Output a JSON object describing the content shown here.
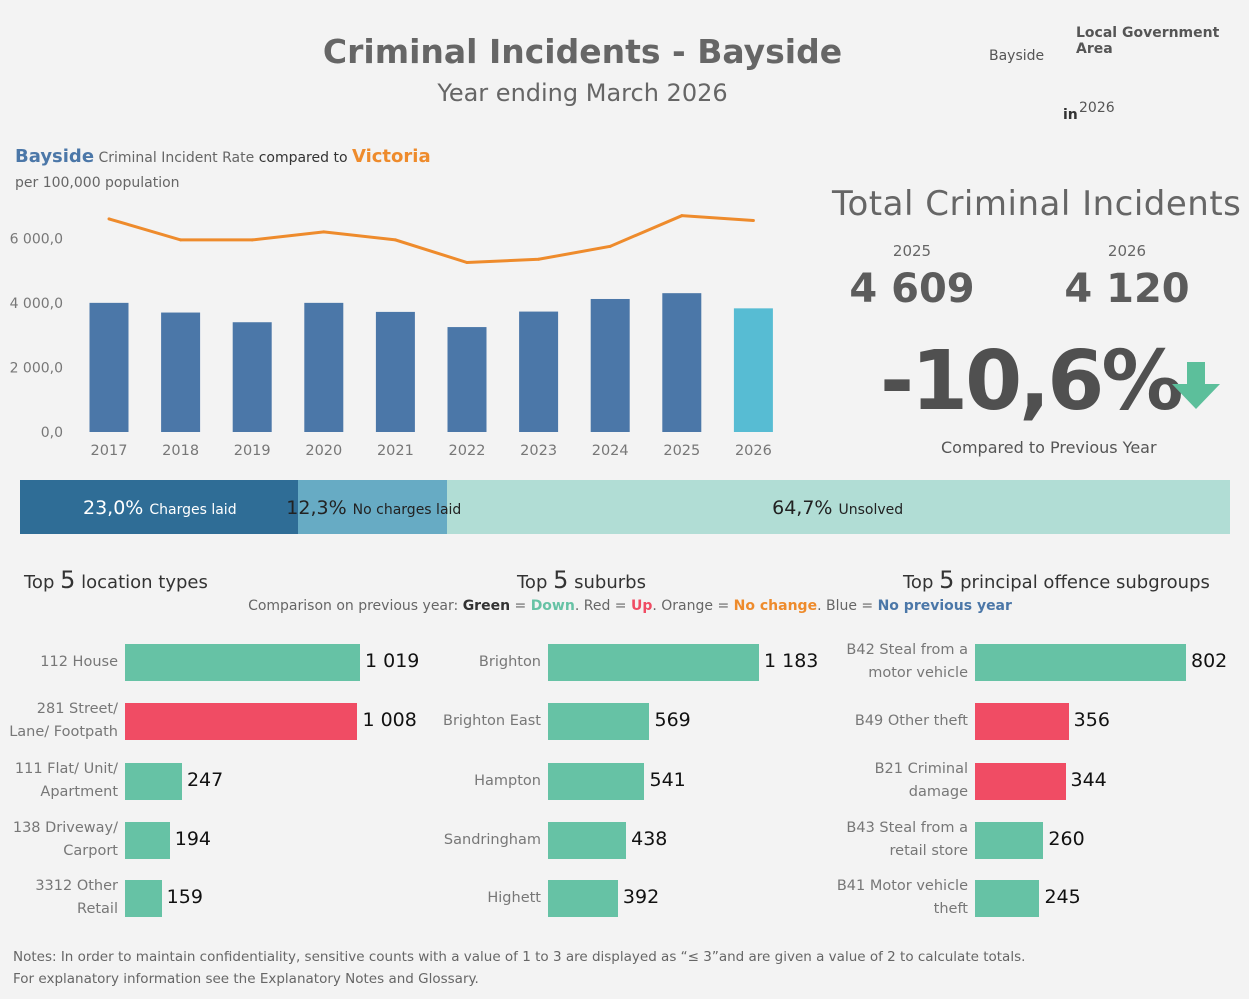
{
  "header": {
    "title": "Criminal Incidents - Bayside",
    "subtitle": "Year ending March 2026",
    "lga_label": "Local Government Area",
    "lga_value": "Bayside",
    "in_label": "in",
    "year_value": "2026"
  },
  "rate_section": {
    "location": "Bayside",
    "mid_text": "Criminal Incident Rate",
    "compared_text": "compared to",
    "comparison": "Victoria",
    "per_text": "per 100,000 population"
  },
  "total": {
    "title": "Total Criminal Incidents",
    "year1": "2025",
    "value1": "4 609",
    "year2": "2026",
    "value2": "4 120",
    "change": "-10,6%",
    "compared_text": "Compared to Previous Year",
    "arrow_icon": "down-arrow-icon",
    "arrow_color": "#5cbf9b"
  },
  "outcomes": [
    {
      "pct_text": "23,0%",
      "label": "Charges laid",
      "share": 0.23,
      "color": "#2f6d96",
      "text_color": "#ffffff"
    },
    {
      "pct_text": "12,3%",
      "label": "No charges laid",
      "share": 0.123,
      "color": "#67abc4",
      "text_color": "#222222"
    },
    {
      "pct_text": "64,7%",
      "label": "Unsolved",
      "share": 0.647,
      "color": "#b1ddd5",
      "text_color": "#222222"
    }
  ],
  "sections": {
    "top": "Top",
    "five": "5",
    "locations_title": "location types",
    "suburbs_title": "suburbs",
    "offences_title": "principal offence subgroups",
    "legend": {
      "prefix": "Comparison on previous year:",
      "green": "Green",
      "eq1": "=",
      "down": "Down",
      "red": "Red",
      "eq2": "=",
      "up": "Up",
      "orange": "Orange",
      "eq3": "=",
      "nochange": "No change",
      "blue": "Blue",
      "eq4": "=",
      "noprev": "No previous year"
    }
  },
  "colors": {
    "bar": "#4b77a8",
    "bar_current": "#57bcd3",
    "line": "#ee8b2c",
    "down": "#66c2a5",
    "up": "#f04c64",
    "nochange": "#ee8b2c",
    "noprev": "#4b77a8"
  },
  "chart_data": [
    {
      "type": "bar",
      "categories": [
        "2017",
        "2018",
        "2019",
        "2020",
        "2021",
        "2022",
        "2023",
        "2024",
        "2025",
        "2026"
      ],
      "series": [
        {
          "name": "Bayside",
          "values": [
            4000,
            3700,
            3400,
            4000,
            3720,
            3250,
            3730,
            4120,
            4300,
            3830
          ]
        },
        {
          "name": "Victoria",
          "values": [
            6600,
            5950,
            5950,
            6200,
            5950,
            5250,
            5350,
            5750,
            6700,
            6550
          ]
        }
      ],
      "yticks": [
        "6 000,0",
        "4 000,0",
        "2 000,0",
        "0,0"
      ],
      "ytick_values": [
        6000,
        4000,
        2000,
        0
      ],
      "ylim": [
        0,
        7000
      ]
    },
    {
      "type": "bar",
      "orientation": "horizontal",
      "categories": [
        "112 House",
        "281 Street/ Lane/ Footpath",
        "111 Flat/ Unit/ Apartment",
        "138 Driveway/ Carport",
        "3312 Other Retail"
      ],
      "labels": [
        [
          "112 House"
        ],
        [
          "281 Street/",
          "Lane/ Footpath"
        ],
        [
          "111 Flat/ Unit/",
          "Apartment"
        ],
        [
          "138 Driveway/",
          "Carport"
        ],
        [
          "3312 Other",
          "Retail"
        ]
      ],
      "values": [
        1019,
        1008,
        247,
        194,
        159
      ],
      "value_text": [
        "1 019",
        "1 008",
        "247",
        "194",
        "159"
      ],
      "status": [
        "down",
        "up",
        "down",
        "down",
        "down"
      ]
    },
    {
      "type": "bar",
      "orientation": "horizontal",
      "categories": [
        "Brighton",
        "Brighton East",
        "Hampton",
        "Sandringham",
        "Highett"
      ],
      "labels": [
        [
          "Brighton"
        ],
        [
          "Brighton East"
        ],
        [
          "Hampton"
        ],
        [
          "Sandringham"
        ],
        [
          "Highett"
        ]
      ],
      "values": [
        1183,
        569,
        541,
        438,
        392
      ],
      "value_text": [
        "1 183",
        "569",
        "541",
        "438",
        "392"
      ],
      "status": [
        "down",
        "down",
        "down",
        "down",
        "down"
      ]
    },
    {
      "type": "bar",
      "orientation": "horizontal",
      "categories": [
        "B42 Steal from a motor vehicle",
        "B49 Other theft",
        "B21 Criminal damage",
        "B43 Steal from a retail store",
        "B41 Motor vehicle theft"
      ],
      "labels": [
        [
          "B42 Steal from a",
          "motor vehicle"
        ],
        [
          "B49 Other theft"
        ],
        [
          "B21 Criminal",
          "damage"
        ],
        [
          "B43 Steal from a",
          "retail store"
        ],
        [
          "B41 Motor vehicle",
          "theft"
        ]
      ],
      "values": [
        802,
        356,
        344,
        260,
        245
      ],
      "value_text": [
        "802",
        "356",
        "344",
        "260",
        "245"
      ],
      "status": [
        "down",
        "up",
        "up",
        "down",
        "down"
      ]
    }
  ],
  "notes": {
    "line1": "Notes:  In order to maintain confidentiality, sensitive counts with a value of 1 to 3  are displayed as “≤ 3”and are given a value of 2 to calculate totals.",
    "line2": "For explanatory information see the Explanatory Notes and Glossary."
  }
}
